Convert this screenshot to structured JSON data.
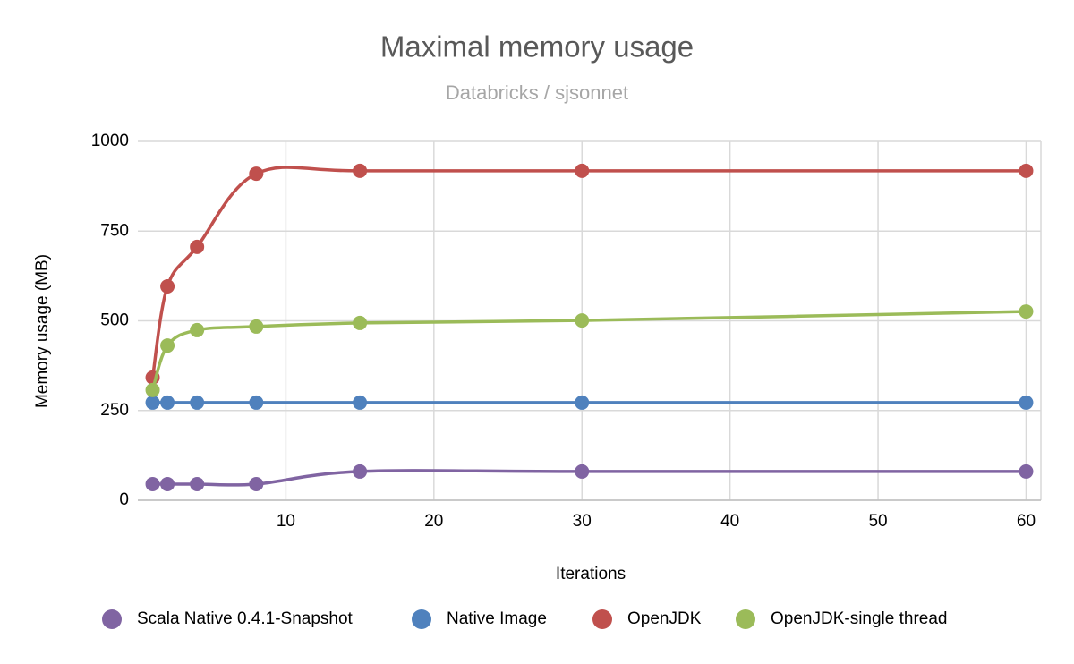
{
  "chart_data": {
    "type": "line",
    "title": "Maximal memory usage",
    "subtitle": "Databricks / sjsonnet",
    "x_label": "Iterations",
    "y_label": "Memory usage (MB)",
    "x": [
      1,
      2,
      4,
      8,
      15,
      30,
      60
    ],
    "series": [
      {
        "name": "Scala Native 0.4.1-Snapshot",
        "color": "#8064a2",
        "values": [
          45,
          45,
          45,
          45,
          80,
          80,
          80
        ]
      },
      {
        "name": "Native Image",
        "color": "#4f81bd",
        "values": [
          272,
          272,
          272,
          272,
          272,
          272,
          272
        ]
      },
      {
        "name": "OpenJDK",
        "color": "#c0504d",
        "values": [
          342,
          596,
          706,
          910,
          918,
          918,
          918
        ]
      },
      {
        "name": "OpenJDK-single thread",
        "color": "#9bbb59",
        "values": [
          307,
          431,
          474,
          484,
          494,
          501,
          526
        ]
      }
    ],
    "xlim": [
      0,
      61
    ],
    "xticks": [
      10,
      20,
      30,
      40,
      50,
      60
    ],
    "ylim": [
      0,
      1000
    ],
    "yticks": [
      0,
      250,
      500,
      750,
      1000
    ],
    "grid": true,
    "smooth": true,
    "legend": "bottom"
  }
}
